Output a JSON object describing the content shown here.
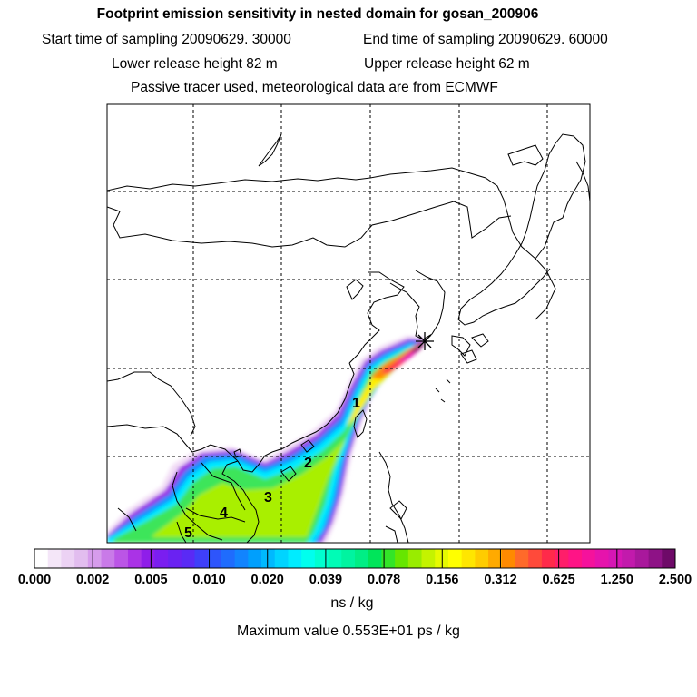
{
  "header": {
    "title": "Footprint emission sensitivity in nested domain for gosan_200906",
    "start_label": "Start time of sampling 20090629. 30000",
    "end_label": "End time of sampling 20090629. 60000",
    "lower_label": "Lower release height   82 m",
    "upper_label": "Upper release height   62 m",
    "tracer_label": "Passive tracer used, meteorological data are from ECMWF"
  },
  "map": {
    "release_site_marker": "star-icon",
    "labels": [
      "1",
      "2",
      "3",
      "4",
      "5"
    ]
  },
  "colorbar": {
    "tick_labels": [
      "0.000",
      "0.002",
      "0.005",
      "0.010",
      "0.020",
      "0.039",
      "0.078",
      "0.156",
      "0.312",
      "0.625",
      "1.250",
      "2.500"
    ],
    "colors": [
      "#ffffff",
      "#f4e6f8",
      "#ecd2f4",
      "#e2bdef",
      "#d69cec",
      "#c97ae8",
      "#bb55e6",
      "#aa33e6",
      "#8f1ee9",
      "#7a1ef0",
      "#6a22f2",
      "#5a2af5",
      "#3f3ff9",
      "#2e55fb",
      "#1f6cfd",
      "#1284fe",
      "#009ffd",
      "#00b9fe",
      "#00d4ff",
      "#00ecff",
      "#00ffee",
      "#00ffd0",
      "#00fcb6",
      "#00f4a0",
      "#00ee85",
      "#00e55a",
      "#33e528",
      "#66e600",
      "#99ec00",
      "#c4f300",
      "#e6fa00",
      "#ffff00",
      "#ffe600",
      "#ffcc00",
      "#ffaa00",
      "#ff8a00",
      "#ff6a2a",
      "#ff4a3a",
      "#ff2a4a",
      "#ff1e6a",
      "#ff1486",
      "#f5129c",
      "#e613ac",
      "#d616b4",
      "#c21aac",
      "#a9189c",
      "#8e1286",
      "#6e0a68"
    ],
    "unit": "ns / kg",
    "max_value_text": "Maximum value  0.553E+01 ps / kg"
  }
}
